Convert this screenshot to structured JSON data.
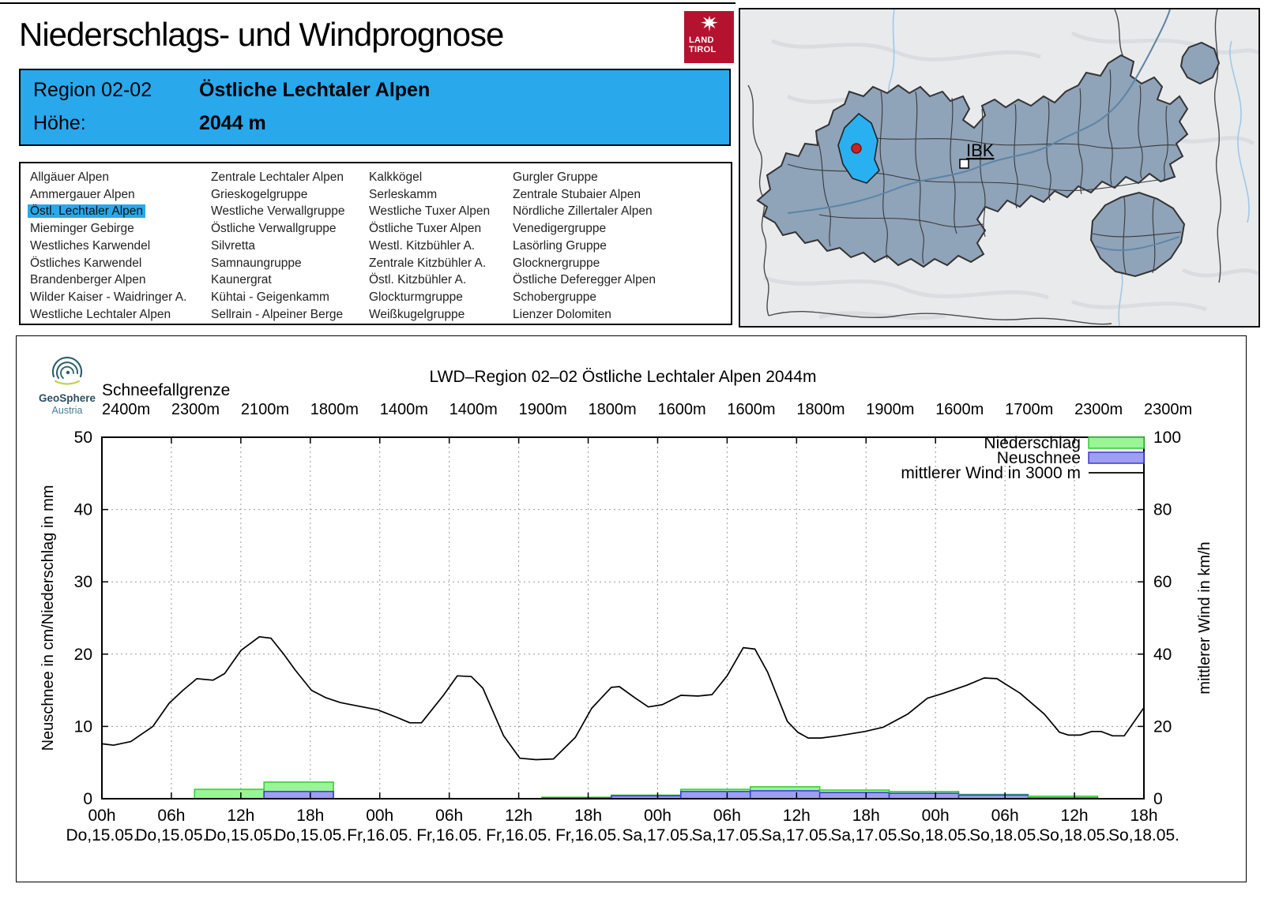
{
  "page": {
    "title": "Niederschlags- und Windprognose"
  },
  "logo": {
    "line1": "LAND",
    "line2": "TIROL"
  },
  "geosphere": {
    "line1": "GeoSphere",
    "line2": "Austria"
  },
  "region_box": {
    "region_label": "Region 02-02",
    "region_name": "Östliche Lechtaler Alpen",
    "hoehe_label": "Höhe:",
    "hoehe_value": "2044 m"
  },
  "region_list": {
    "selected": "Östl. Lechtaler Alpen",
    "columns": [
      [
        "Allgäuer Alpen",
        "Ammergauer Alpen",
        "Östl. Lechtaler Alpen",
        "Mieminger Gebirge",
        "Westliches Karwendel",
        "Östliches Karwendel",
        "Brandenberger Alpen",
        "Wilder Kaiser - Waidringer A.",
        "Westliche Lechtaler Alpen"
      ],
      [
        "Zentrale Lechtaler Alpen",
        "Grieskogelgruppe",
        "Westliche Verwallgruppe",
        "Östliche Verwallgruppe",
        "Silvretta",
        "Samnaungruppe",
        "Kaunergrat",
        "Kühtai - Geigenkamm",
        "Sellrain - Alpeiner Berge"
      ],
      [
        "Kalkkögel",
        "Serleskamm",
        "Westliche Tuxer Alpen",
        "Östliche Tuxer Alpen",
        "Westl. Kitzbühler A.",
        "Zentrale Kitzbühler A.",
        "Östl. Kitzbühler A.",
        "Glockturmgruppe",
        "Weißkugelgruppe"
      ],
      [
        "Gurgler Gruppe",
        "Zentrale Stubaier Alpen",
        "Nördliche Zillertaler Alpen",
        "Venedigergruppe",
        "Lasörling Gruppe",
        "Glocknergruppe",
        "Östliche Deferegger Alpen",
        "Schobergruppe",
        "Lienzer Dolomiten"
      ]
    ]
  },
  "map": {
    "city_label": "IBK",
    "colors": {
      "region_fill": "#8fa3b9",
      "highlight": "#29b0f0",
      "marker": "#cc2222"
    }
  },
  "chart_data": {
    "type": "bar+line",
    "title": "LWD–Region 02–02 Östliche Lechtaler Alpen 2044m",
    "snowline": {
      "label": "Schneefallgrenze",
      "values": [
        "2400m",
        "2300m",
        "2100m",
        "1800m",
        "1400m",
        "1400m",
        "1900m",
        "1800m",
        "1600m",
        "1600m",
        "1800m",
        "1900m",
        "1600m",
        "1700m",
        "2300m",
        "2300m"
      ]
    },
    "x_ticks": [
      {
        "hour": "00h",
        "day": "Do,15.05."
      },
      {
        "hour": "06h",
        "day": "Do,15.05."
      },
      {
        "hour": "12h",
        "day": "Do,15.05."
      },
      {
        "hour": "18h",
        "day": "Do,15.05."
      },
      {
        "hour": "00h",
        "day": "Fr,16.05."
      },
      {
        "hour": "06h",
        "day": "Fr,16.05."
      },
      {
        "hour": "12h",
        "day": "Fr,16.05."
      },
      {
        "hour": "18h",
        "day": "Fr,16.05."
      },
      {
        "hour": "00h",
        "day": "Sa,17.05."
      },
      {
        "hour": "06h",
        "day": "Sa,17.05."
      },
      {
        "hour": "12h",
        "day": "Sa,17.05."
      },
      {
        "hour": "18h",
        "day": "Sa,17.05."
      },
      {
        "hour": "00h",
        "day": "So,18.05."
      },
      {
        "hour": "06h",
        "day": "So,18.05."
      },
      {
        "hour": "12h",
        "day": "So,18.05."
      },
      {
        "hour": "18h",
        "day": "So,18.05."
      }
    ],
    "axes": {
      "left_label": "Neuschnee in cm/Niederschlag in mm",
      "left_range": [
        0,
        50
      ],
      "left_step": 10,
      "right_label": "mittlerer Wind in km/h",
      "right_range": [
        0,
        100
      ],
      "right_step": 20,
      "x_hours": [
        0,
        90
      ],
      "x_tick_step": 6,
      "grid": true
    },
    "legend": [
      {
        "label": "Niederschlag",
        "type": "box",
        "fill": "#99f596",
        "stroke": "#33cc33"
      },
      {
        "label": "Neuschnee",
        "type": "box",
        "fill": "#9e9ef2",
        "stroke": "#3838d8"
      },
      {
        "label": "mittlerer Wind in 3000 m",
        "type": "line",
        "stroke": "#000000"
      }
    ],
    "bars": [
      {
        "from_hour": 8,
        "to_hour": 14,
        "niederschlag_mm": 1.3,
        "neuschnee_cm": 0
      },
      {
        "from_hour": 14,
        "to_hour": 20,
        "niederschlag_mm": 2.3,
        "neuschnee_cm": 1.0
      },
      {
        "from_hour": 38,
        "to_hour": 44,
        "niederschlag_mm": 0.2,
        "neuschnee_cm": 0.1
      },
      {
        "from_hour": 44,
        "to_hour": 50,
        "niederschlag_mm": 0.5,
        "neuschnee_cm": 0.4
      },
      {
        "from_hour": 50,
        "to_hour": 56,
        "niederschlag_mm": 1.3,
        "neuschnee_cm": 1.0
      },
      {
        "from_hour": 56,
        "to_hour": 62,
        "niederschlag_mm": 1.65,
        "neuschnee_cm": 1.1
      },
      {
        "from_hour": 62,
        "to_hour": 68,
        "niederschlag_mm": 1.2,
        "neuschnee_cm": 0.85
      },
      {
        "from_hour": 68,
        "to_hour": 74,
        "niederschlag_mm": 1.0,
        "neuschnee_cm": 0.75
      },
      {
        "from_hour": 74,
        "to_hour": 80,
        "niederschlag_mm": 0.6,
        "neuschnee_cm": 0.5
      },
      {
        "from_hour": 80,
        "to_hour": 86,
        "niederschlag_mm": 0.35,
        "neuschnee_cm": 0.1
      }
    ],
    "wind_kmh": [
      [
        0,
        15.2
      ],
      [
        1,
        14.8
      ],
      [
        2.5,
        15.8
      ],
      [
        4.4,
        20.0
      ],
      [
        5.8,
        26.4
      ],
      [
        7.0,
        30.0
      ],
      [
        8.2,
        33.2
      ],
      [
        9.6,
        32.8
      ],
      [
        10.6,
        34.6
      ],
      [
        12.0,
        41.0
      ],
      [
        13.6,
        44.8
      ],
      [
        14.6,
        44.4
      ],
      [
        15.7,
        40.0
      ],
      [
        16.7,
        35.6
      ],
      [
        18.1,
        30.0
      ],
      [
        19.3,
        28.0
      ],
      [
        20.6,
        26.6
      ],
      [
        22.2,
        25.6
      ],
      [
        23.8,
        24.6
      ],
      [
        25.4,
        22.6
      ],
      [
        26.6,
        21.0
      ],
      [
        27.6,
        21.0
      ],
      [
        29.5,
        28.6
      ],
      [
        30.7,
        34.0
      ],
      [
        31.9,
        33.8
      ],
      [
        32.9,
        30.6
      ],
      [
        34.7,
        17.4
      ],
      [
        36.1,
        11.2
      ],
      [
        37.5,
        10.8
      ],
      [
        39.0,
        11.0
      ],
      [
        40.9,
        17.0
      ],
      [
        42.3,
        25.0
      ],
      [
        44.0,
        30.8
      ],
      [
        44.7,
        31.0
      ],
      [
        46.0,
        28.0
      ],
      [
        47.2,
        25.4
      ],
      [
        48.4,
        26.0
      ],
      [
        50.0,
        28.6
      ],
      [
        51.5,
        28.4
      ],
      [
        52.7,
        28.8
      ],
      [
        54.0,
        34.0
      ],
      [
        55.4,
        41.8
      ],
      [
        56.4,
        41.4
      ],
      [
        57.5,
        35.0
      ],
      [
        59.2,
        21.4
      ],
      [
        60.1,
        18.4
      ],
      [
        61.0,
        16.8
      ],
      [
        62.1,
        16.8
      ],
      [
        63.6,
        17.4
      ],
      [
        65.9,
        18.6
      ],
      [
        67.5,
        19.8
      ],
      [
        69.6,
        23.4
      ],
      [
        71.3,
        27.8
      ],
      [
        72.7,
        29.2
      ],
      [
        74.7,
        31.4
      ],
      [
        76.2,
        33.4
      ],
      [
        77.3,
        33.2
      ],
      [
        79.3,
        29.2
      ],
      [
        81.4,
        23.4
      ],
      [
        82.7,
        18.4
      ],
      [
        83.5,
        17.6
      ],
      [
        84.5,
        17.6
      ],
      [
        85.5,
        18.6
      ],
      [
        86.3,
        18.6
      ],
      [
        87.3,
        17.4
      ],
      [
        88.3,
        17.4
      ],
      [
        90,
        25.2
      ]
    ]
  }
}
